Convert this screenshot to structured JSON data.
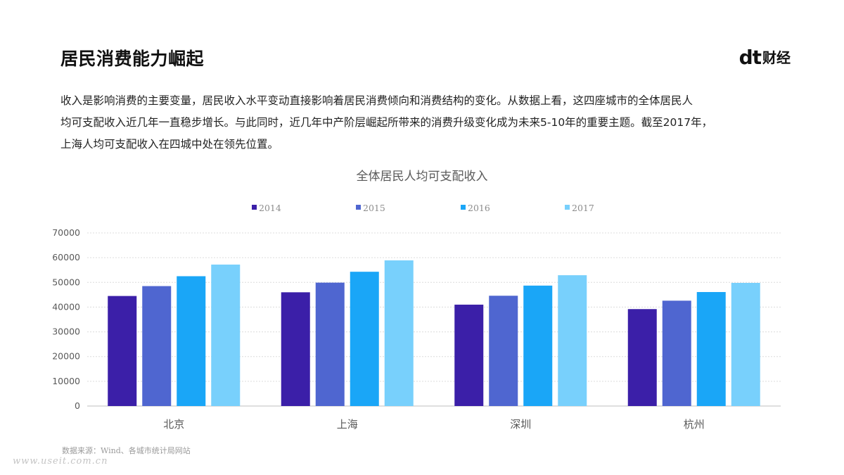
{
  "page": {
    "title": "居民消费能力崛起",
    "logo": {
      "mark": "dt",
      "text": "财经"
    },
    "paragraph_lines": [
      "收入是影响消费的主要变量，居民收入水平变动直接影响着居民消费倾向和消费结构的变化。从数据上看，这四座城市的全体居民人",
      "均可支配收入近几年一直稳步增长。与此同时，近几年中产阶层崛起所带来的消费升级变化成为未来5-10年的重要主题。截至2017年，",
      "上海人均可支配收入在四城中处在领先位置。"
    ],
    "source": "数据来源：Wind、各城市统计局网站",
    "watermark": "www.useit.com.cn"
  },
  "chart_data": {
    "type": "bar",
    "title": "全体居民人均可支配收入",
    "xlabel": "",
    "ylabel": "",
    "categories": [
      "北京",
      "上海",
      "深圳",
      "杭州"
    ],
    "series": [
      {
        "name": "2014",
        "color": "#3B1FA8",
        "values": [
          44500,
          46000,
          41000,
          39200
        ]
      },
      {
        "name": "2015",
        "color": "#4F66D0",
        "values": [
          48500,
          49900,
          44600,
          42600
        ]
      },
      {
        "name": "2016",
        "color": "#1AA6F7",
        "values": [
          52500,
          54300,
          48700,
          46100
        ]
      },
      {
        "name": "2017",
        "color": "#78D0FC",
        "values": [
          57200,
          58900,
          52900,
          49800
        ]
      }
    ],
    "yticks": [
      "0",
      "10000",
      "20000",
      "30000",
      "40000",
      "50000",
      "60000",
      "70000"
    ],
    "ylim": [
      0,
      70000
    ],
    "grid": true,
    "legend_position": "top"
  }
}
